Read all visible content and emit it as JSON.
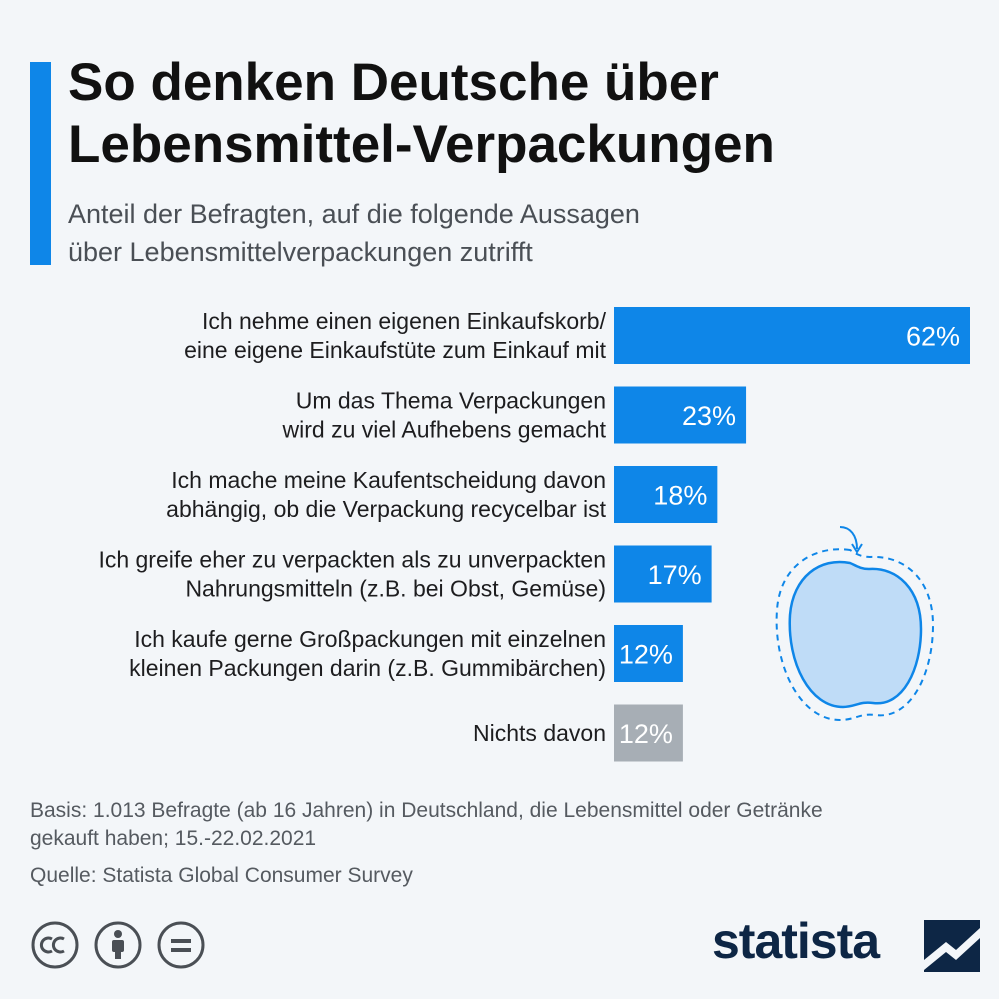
{
  "header": {
    "title_line1": "So denken Deutsche über",
    "title_line2": "Lebensmittel-Verpackungen",
    "subtitle_line1": "Anteil der Befragten, auf die folgende Aussagen",
    "subtitle_line2": "über Lebensmittelverpackungen zutrifft"
  },
  "chart_data": {
    "type": "bar",
    "orientation": "horizontal",
    "title": "So denken Deutsche über Lebensmittel-Verpackungen",
    "subtitle": "Anteil der Befragten, auf die folgende Aussagen über Lebensmittelverpackungen zutrifft",
    "categories": [
      [
        "Ich nehme einen eigenen Einkaufskorb/",
        "eine eigene Einkaufstüte zum Einkauf mit"
      ],
      [
        "Um das Thema Verpackungen",
        "wird zu viel Aufhebens gemacht"
      ],
      [
        "Ich mache meine Kaufentscheidung davon",
        "abhängig, ob die Verpackung recycelbar ist"
      ],
      [
        "Ich greife eher zu verpackten als zu unverpackten",
        "Nahrungsmitteln (z.B. bei Obst, Gemüse)"
      ],
      [
        "Ich kaufe gerne Großpackungen mit einzelnen",
        "kleinen Packungen darin (z.B. Gummibärchen)"
      ],
      [
        "Nichts davon"
      ]
    ],
    "values": [
      62,
      23,
      18,
      17,
      12,
      12
    ],
    "value_labels": [
      "62%",
      "23%",
      "18%",
      "17%",
      "12%",
      "12%"
    ],
    "bar_colors": [
      "#0e86e8",
      "#0e86e8",
      "#0e86e8",
      "#0e86e8",
      "#0e86e8",
      "#a7aeb5"
    ],
    "xlim": [
      0,
      62
    ],
    "grid": false,
    "legend": "none"
  },
  "footer": {
    "basis_line1": "Basis: 1.013 Befragte (ab 16 Jahren) in Deutschland, die Lebensmittel oder Getränke",
    "basis_line2": "gekauft haben; 15.-22.02.2021",
    "source": "Quelle: Statista Global Consumer Survey",
    "license_icons": [
      "cc-icon",
      "attribution-icon",
      "no-derivatives-icon"
    ],
    "logo_text": "statista"
  },
  "colors": {
    "accent": "#0e86e8",
    "neutral_bar": "#a7aeb5",
    "background": "#f3f6f9",
    "logo": "#0d2645"
  }
}
